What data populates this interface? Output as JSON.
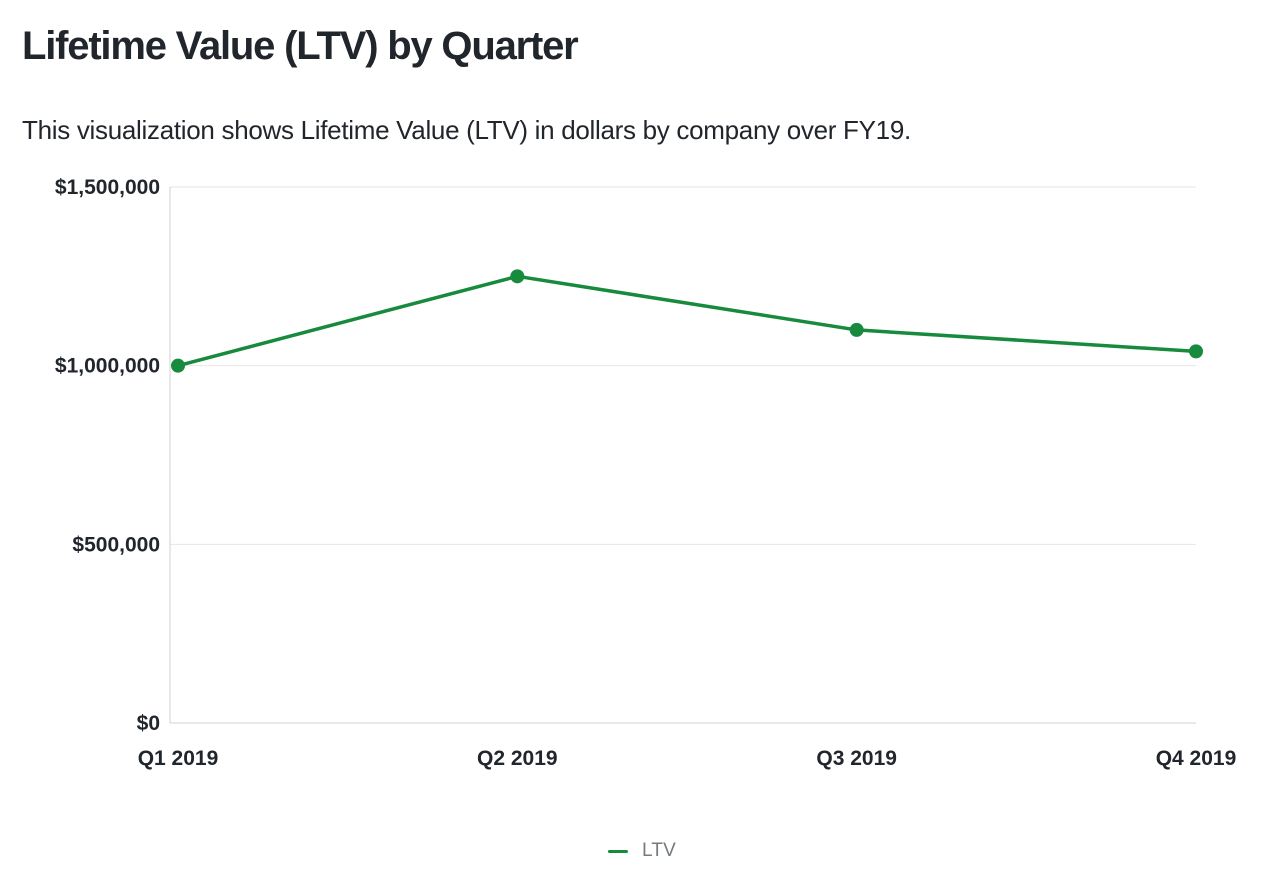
{
  "header": {
    "title": "Lifetime Value (LTV) by Quarter",
    "subtitle": "This visualization shows Lifetime Value (LTV) in dollars by company over FY19."
  },
  "chart_data": {
    "type": "line",
    "title": "Lifetime Value (LTV) by Quarter",
    "categories": [
      "Q1 2019",
      "Q2 2019",
      "Q3 2019",
      "Q4 2019"
    ],
    "series": [
      {
        "name": "LTV",
        "color": "#178a3d",
        "values": [
          1000000,
          1250000,
          1100000,
          1040000
        ]
      }
    ],
    "xlabel": "",
    "ylabel": "",
    "ylim": [
      0,
      1500000
    ],
    "yticks": [
      0,
      500000,
      1000000,
      1500000
    ],
    "ytick_labels": [
      "$0",
      "$500,000",
      "$1,000,000",
      "$1,500,000"
    ],
    "grid": true,
    "legend_position": "bottom",
    "colors": {
      "line": "#178a3d",
      "text": "#21252c",
      "grid": "#e6e6e6",
      "axis": "#d2d2d2",
      "legend_text": "#757a80",
      "background": "#ffffff"
    }
  },
  "legend": {
    "items": [
      {
        "label": "LTV",
        "color": "#178a3d"
      }
    ]
  }
}
